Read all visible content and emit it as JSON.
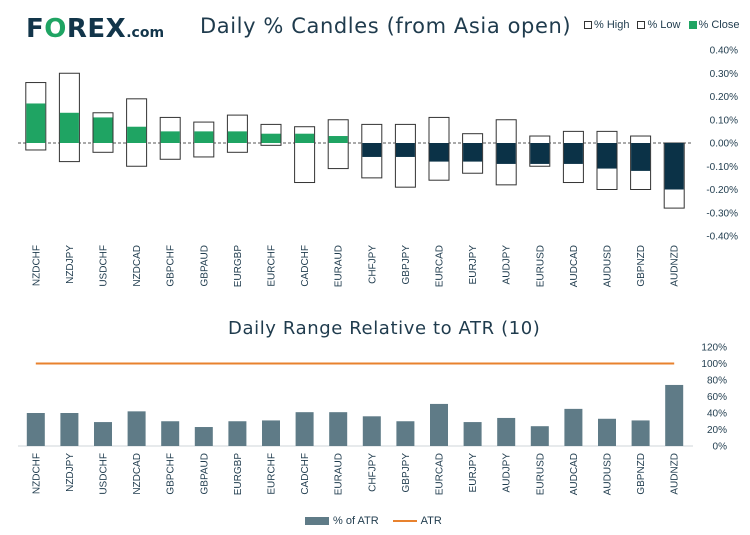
{
  "logo": {
    "prefix": "F",
    "o": "O",
    "suffix": "REX",
    "tld": ".com"
  },
  "chart_data": [
    {
      "type": "bar",
      "title": "Daily % Candles (from Asia open)",
      "categories": [
        "NZDCHF",
        "NZDJPY",
        "USDCHF",
        "NZDCAD",
        "GBPCHF",
        "GBPAUD",
        "EURGBP",
        "EURCHF",
        "CADCHF",
        "EURAUD",
        "CHFJPY",
        "GBPJPY",
        "EURCAD",
        "EURJPY",
        "AUDJPY",
        "EURUSD",
        "AUDCAD",
        "AUDUSD",
        "GBPNZD",
        "AUDNZD"
      ],
      "series": [
        {
          "name": "% High",
          "values": [
            0.26,
            0.3,
            0.13,
            0.19,
            0.11,
            0.09,
            0.12,
            0.08,
            0.07,
            0.1,
            0.08,
            0.08,
            0.11,
            0.04,
            0.1,
            0.03,
            0.05,
            0.05,
            0.03,
            0.0
          ]
        },
        {
          "name": "% Low",
          "values": [
            -0.03,
            -0.08,
            -0.04,
            -0.1,
            -0.07,
            -0.06,
            -0.04,
            -0.01,
            -0.17,
            -0.11,
            -0.15,
            -0.19,
            -0.16,
            -0.13,
            -0.18,
            -0.1,
            -0.17,
            -0.2,
            -0.2,
            -0.28
          ]
        },
        {
          "name": "% Close",
          "values": [
            0.17,
            0.13,
            0.11,
            0.07,
            0.05,
            0.05,
            0.05,
            0.04,
            0.04,
            0.03,
            -0.06,
            -0.06,
            -0.08,
            -0.08,
            -0.09,
            -0.09,
            -0.09,
            -0.11,
            -0.12,
            -0.2
          ]
        }
      ],
      "ylim": [
        -0.4,
        0.4
      ],
      "yticks": [
        "0.40%",
        "0.30%",
        "0.20%",
        "0.10%",
        "0.00%",
        "-0.10%",
        "-0.20%",
        "-0.30%",
        "-0.40%"
      ],
      "ytick_values": [
        0.4,
        0.3,
        0.2,
        0.1,
        0,
        -0.1,
        -0.2,
        -0.3,
        -0.4
      ],
      "legend": "top-right",
      "colors": {
        "positive": "#1fa463",
        "negative": "#0b3247",
        "range": "#ffffff",
        "outline": "#333333"
      }
    },
    {
      "type": "bar",
      "title": "Daily Range Relative to ATR (10)",
      "categories": [
        "NZDCHF",
        "NZDJPY",
        "USDCHF",
        "NZDCAD",
        "GBPCHF",
        "GBPAUD",
        "EURGBP",
        "EURCHF",
        "CADCHF",
        "EURAUD",
        "CHFJPY",
        "GBPJPY",
        "EURCAD",
        "EURJPY",
        "AUDJPY",
        "EURUSD",
        "AUDCAD",
        "AUDUSD",
        "GBPNZD",
        "AUDNZD"
      ],
      "series": [
        {
          "name": "% of ATR",
          "values": [
            40,
            40,
            29,
            42,
            30,
            23,
            30,
            31,
            41,
            41,
            36,
            30,
            51,
            29,
            34,
            24,
            45,
            33,
            31,
            74
          ]
        },
        {
          "name": "ATR",
          "values": [
            100,
            100,
            100,
            100,
            100,
            100,
            100,
            100,
            100,
            100,
            100,
            100,
            100,
            100,
            100,
            100,
            100,
            100,
            100,
            100
          ]
        }
      ],
      "ylim": [
        0,
        120
      ],
      "yticks": [
        "120%",
        "100%",
        "80%",
        "60%",
        "40%",
        "20%",
        "0%"
      ],
      "ytick_values": [
        120,
        100,
        80,
        60,
        40,
        20,
        0
      ],
      "legend": "bottom",
      "colors": {
        "bar": "#5f7b87",
        "atr": "#e8822e"
      }
    }
  ]
}
